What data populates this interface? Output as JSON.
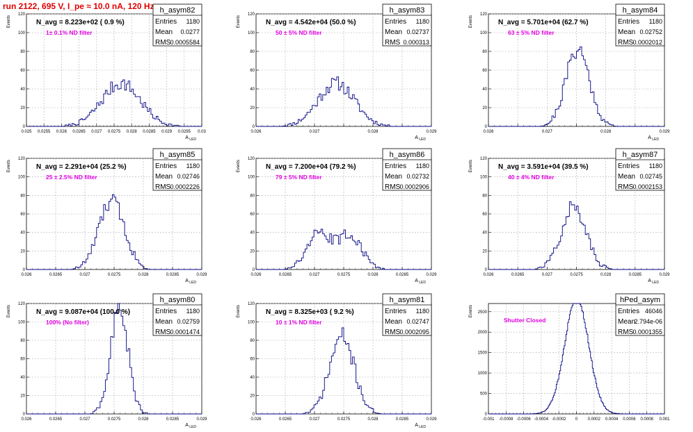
{
  "run_title": "run 2122,   695 V, I_pe ≈ 10.0 nA, 120 Hz",
  "colors": {
    "hist": "#000080",
    "title": "#e00000",
    "annotation": "#e000e0",
    "grid": "#b0b0b0"
  },
  "chart_data": [
    {
      "type": "bar",
      "name": "h_asym82",
      "navg": "N_avg = 8.223e+02 ( 0.9 %)",
      "note": "1± 0.1% ND filter",
      "stats": {
        "Entries": "1180",
        "Mean": "0.0277",
        "RMS": "0.0005584"
      },
      "xlim": [
        0.025,
        0.03
      ],
      "ylim": [
        0,
        120
      ],
      "xticks": [
        "0.025",
        "0.0255",
        "0.026",
        "0.0265",
        "0.027",
        "0.0275",
        "0.028",
        "0.0285",
        "0.029",
        "0.0295",
        "0.03"
      ],
      "yticks": [
        "0",
        "20",
        "40",
        "60",
        "80",
        "100",
        "120"
      ],
      "ylabel": "Events",
      "xlabel": "A_LED",
      "mean": 0.0277,
      "sigma": 0.00055,
      "peak": 46,
      "bw": 5e-05,
      "seed": 7
    },
    {
      "type": "bar",
      "name": "h_asym83",
      "navg": "N_avg = 4.542e+04 (50.0 %)",
      "note": "50 ± 5% ND filter",
      "stats": {
        "Entries": "1180",
        "Mean": "0.02737",
        "RMS": "0.000313"
      },
      "xlim": [
        0.026,
        0.029
      ],
      "ylim": [
        0,
        120
      ],
      "xticks": [
        "0.026",
        "",
        "0.027",
        "",
        "0.028",
        "",
        "0.029"
      ],
      "yticks": [
        "0",
        "20",
        "40",
        "60",
        "80",
        "100",
        "120"
      ],
      "ylabel": "Events",
      "xlabel": "A_LED",
      "mean": 0.02737,
      "sigma": 0.000313,
      "peak": 46,
      "bw": 3e-05,
      "seed": 11
    },
    {
      "type": "bar",
      "name": "h_asym84",
      "navg": "N_avg = 5.701e+04 (62.7 %)",
      "note": "63 ± 5% ND filter",
      "stats": {
        "Entries": "1180",
        "Mean": "0.02752",
        "RMS": "0.0002012"
      },
      "xlim": [
        0.026,
        0.029
      ],
      "ylim": [
        0,
        120
      ],
      "xticks": [
        "0.026",
        "",
        "0.027",
        "",
        "0.028",
        "",
        "0.029"
      ],
      "yticks": [
        "0",
        "20",
        "40",
        "60",
        "80",
        "100",
        "120"
      ],
      "ylabel": "Events",
      "xlabel": "A_LED",
      "mean": 0.02752,
      "sigma": 0.0002,
      "peak": 83,
      "bw": 3e-05,
      "seed": 21
    },
    {
      "type": "bar",
      "name": "h_asym85",
      "navg": "N_avg = 2.291e+04 (25.2 %)",
      "note": "25 ± 2.5% ND filter",
      "stats": {
        "Entries": "1180",
        "Mean": "0.02746",
        "RMS": "0.0002226"
      },
      "xlim": [
        0.026,
        0.029
      ],
      "ylim": [
        0,
        120
      ],
      "xticks": [
        "0.026",
        "0.0265",
        "0.027",
        "0.0275",
        "0.028",
        "0.0285",
        "0.029"
      ],
      "yticks": [
        "0",
        "20",
        "40",
        "60",
        "80",
        "100",
        "120"
      ],
      "ylabel": "Events",
      "xlabel": "A_LED",
      "mean": 0.02746,
      "sigma": 0.00022,
      "peak": 74,
      "bw": 3e-05,
      "seed": 33
    },
    {
      "type": "bar",
      "name": "h_asym86",
      "navg": "N_avg = 7.200e+04 (79.2 %)",
      "note": "79 ± 5% ND filter",
      "stats": {
        "Entries": "1180",
        "Mean": "0.02732",
        "RMS": "0.0002906"
      },
      "xlim": [
        0.026,
        0.029
      ],
      "ylim": [
        0,
        120
      ],
      "xticks": [
        "0.026",
        "0.0265",
        "0.027",
        "0.0275",
        "0.028",
        "0.0285",
        "0.029"
      ],
      "yticks": [
        "0",
        "20",
        "40",
        "60",
        "80",
        "100",
        "120"
      ],
      "ylabel": "Events",
      "xlabel": "A_LED",
      "mean": 0.02732,
      "sigma": 0.00029,
      "peak": 55,
      "bw": 3e-05,
      "seed": 45,
      "bimodal": true
    },
    {
      "type": "bar",
      "name": "h_asym87",
      "navg": "N_avg = 3.591e+04 (39.5 %)",
      "note": "40 ± 4% ND filter",
      "stats": {
        "Entries": "1180",
        "Mean": "0.02745",
        "RMS": "0.0002153"
      },
      "xlim": [
        0.026,
        0.029
      ],
      "ylim": [
        0,
        120
      ],
      "xticks": [
        "0.026",
        "0.0265",
        "0.027",
        "0.0275",
        "0.028",
        "0.0285",
        "0.029"
      ],
      "yticks": [
        "0",
        "20",
        "40",
        "60",
        "80",
        "100",
        "120"
      ],
      "ylabel": "Events",
      "xlabel": "A_LED",
      "mean": 0.02745,
      "sigma": 0.00021,
      "peak": 68,
      "bw": 3e-05,
      "seed": 57
    },
    {
      "type": "bar",
      "name": "h_asym80",
      "navg": "N_avg = 9.087e+04 (100.0 %)",
      "note": "100% (No filter)",
      "stats": {
        "Entries": "1180",
        "Mean": "0.02759",
        "RMS": "0.0001474"
      },
      "xlim": [
        0.026,
        0.029
      ],
      "ylim": [
        0,
        120
      ],
      "xticks": [
        "0.026",
        "0.0265",
        "0.027",
        "0.0275",
        "0.028",
        "0.0285",
        "0.029"
      ],
      "yticks": [
        "0",
        "20",
        "40",
        "60",
        "80",
        "100",
        "120"
      ],
      "ylabel": "Events",
      "xlabel": "A_LED",
      "mean": 0.02759,
      "sigma": 0.000147,
      "peak": 117,
      "bw": 3e-05,
      "seed": 63
    },
    {
      "type": "bar",
      "name": "h_asym81",
      "navg": "N_avg = 8.325e+03 ( 9.2 %)",
      "note": "10 ± 1% ND filter",
      "stats": {
        "Entries": "1180",
        "Mean": "0.02747",
        "RMS": "0.0002095"
      },
      "xlim": [
        0.026,
        0.029
      ],
      "ylim": [
        0,
        120
      ],
      "xticks": [
        "0.026",
        "0.0265",
        "0.027",
        "0.0275",
        "0.028",
        "0.0285",
        "0.029"
      ],
      "yticks": [
        "0",
        "20",
        "40",
        "60",
        "80",
        "100",
        "120"
      ],
      "ylabel": "Events",
      "xlabel": "A_LED",
      "mean": 0.02747,
      "sigma": 0.00021,
      "peak": 84,
      "bw": 3e-05,
      "seed": 71
    },
    {
      "type": "bar",
      "name": "hPed_asym",
      "navg": "",
      "note": "Shutter Closed",
      "stats": {
        "Entries": "46046",
        "Mean": "2.794e-06",
        "RMS": "0.0001355"
      },
      "xlim": [
        -0.001,
        0.001
      ],
      "ylim": [
        0,
        2700
      ],
      "xticks": [
        "-0.001",
        "-0.0008",
        "-0.0006",
        "-0.0004",
        "-0.0002",
        "0",
        "0.0002",
        "0.0004",
        "0.0006",
        "0.0008",
        "0.001"
      ],
      "yticks": [
        "0",
        "500",
        "1000",
        "1500",
        "2000",
        "2500"
      ],
      "ylabel": "Events",
      "xlabel": "",
      "mean": 2.8e-06,
      "sigma": 0.0001355,
      "peak": 2850,
      "bw": 1e-05,
      "seed": 85
    }
  ]
}
